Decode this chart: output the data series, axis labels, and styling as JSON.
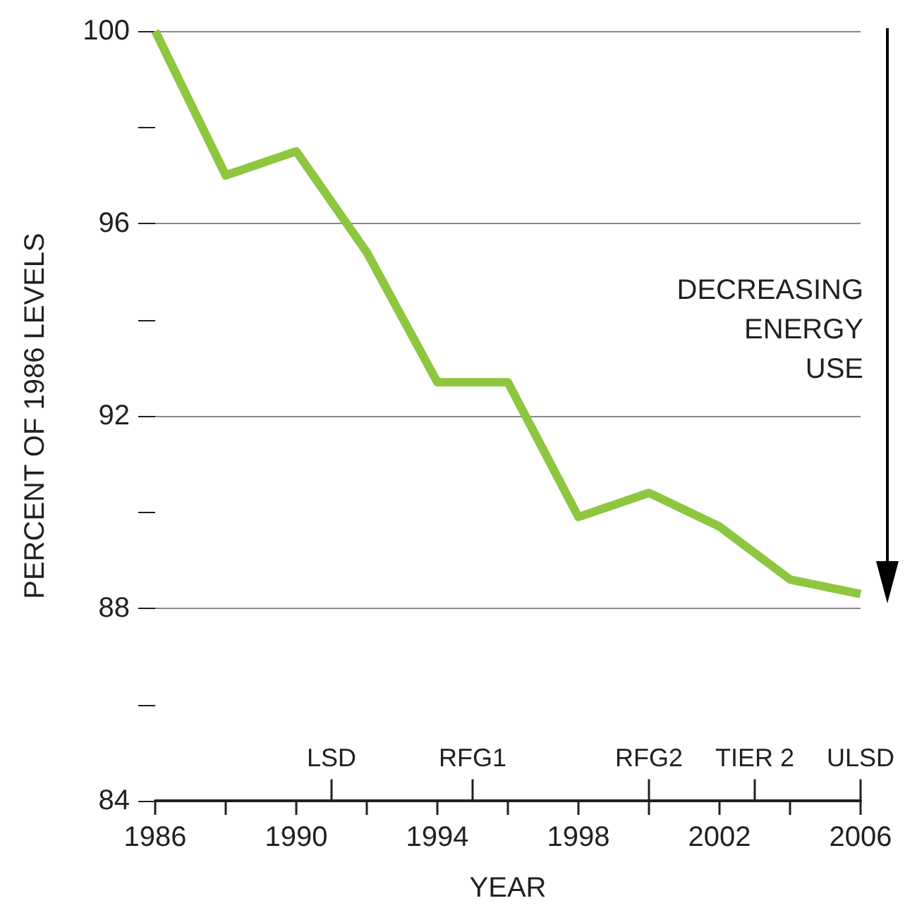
{
  "chart_data": {
    "type": "line",
    "xlabel": "YEAR",
    "ylabel": "PERCENT OF 1986 LEVELS",
    "x": [
      1986,
      1988,
      1990,
      1992,
      1994,
      1996,
      1998,
      2000,
      2002,
      2004,
      2006
    ],
    "series": [
      {
        "color": "#8dc63f",
        "values": [
          100,
          97.0,
          97.5,
          95.4,
          92.7,
          92.7,
          89.9,
          90.4,
          89.7,
          88.6,
          88.3
        ]
      }
    ],
    "xlim": [
      1986,
      2006
    ],
    "xticks": [
      1986,
      {
        "value": 1988,
        "label": null
      },
      1990,
      {
        "value": 1992,
        "label": null
      },
      1994,
      {
        "value": 1996,
        "label": null
      },
      1998,
      {
        "value": 2000,
        "label": null
      },
      2002,
      {
        "value": 2004,
        "label": null
      },
      2006
    ],
    "ylim": [
      84,
      100
    ],
    "yticks": [
      84,
      {
        "value": 86,
        "label": null
      },
      88,
      {
        "value": 90,
        "label": null
      },
      92,
      {
        "value": 94,
        "label": null
      },
      96,
      {
        "value": 98,
        "label": null
      },
      100
    ],
    "grid": "y",
    "marker": "none",
    "line_style": "solid",
    "ref_lines": [
      {
        "axis": "x",
        "value": 1991,
        "label": "LSD"
      },
      {
        "axis": "x",
        "value": 1995,
        "label": "RFG1"
      },
      {
        "axis": "x",
        "value": 2000,
        "label": "RFG2"
      },
      {
        "axis": "x",
        "value": 2003,
        "label": "TIER 2"
      },
      {
        "axis": "x",
        "value": 2006,
        "label": "ULSD"
      }
    ],
    "annotations": [
      "DECREASING\nENERGY\nUSE"
    ]
  }
}
